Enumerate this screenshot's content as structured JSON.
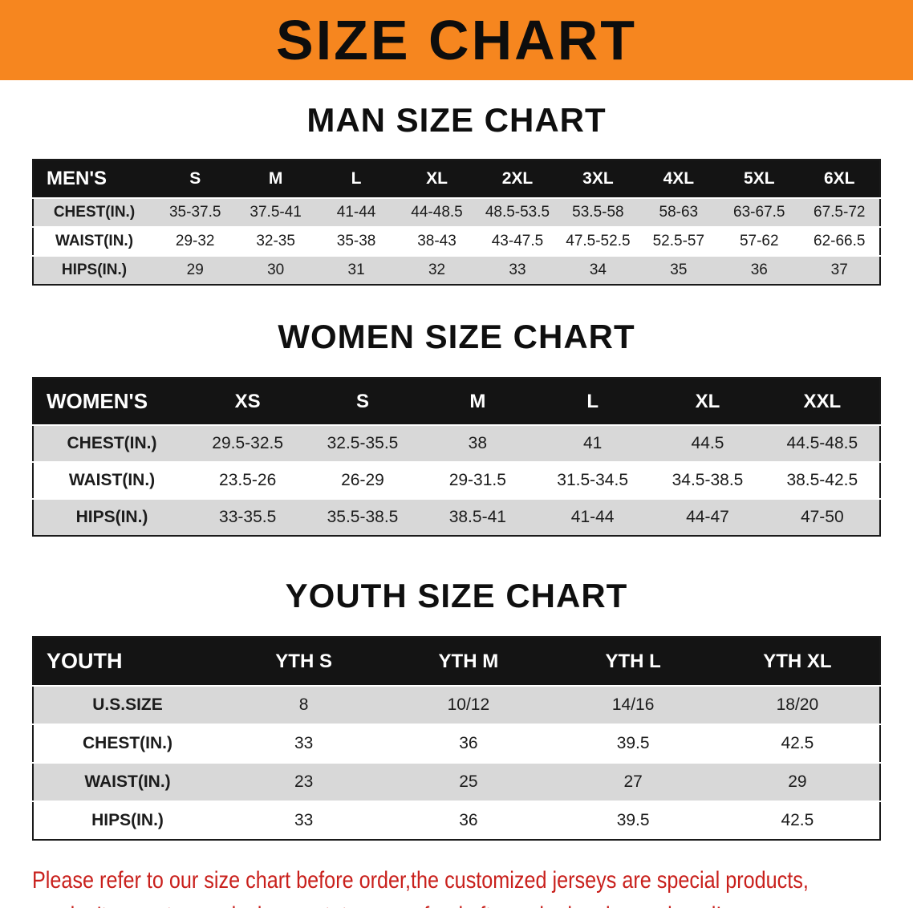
{
  "banner": {
    "title": "SIZE CHART"
  },
  "colors": {
    "banner_bg": "#f6861f",
    "table_header_bg": "#141414",
    "row_stripe": "#d8d8d8",
    "disclaimer_red": "#c9201c"
  },
  "chart_data": [
    {
      "type": "table",
      "title": "MAN SIZE CHART",
      "header": [
        "MEN'S",
        "S",
        "M",
        "L",
        "XL",
        "2XL",
        "3XL",
        "4XL",
        "5XL",
        "6XL"
      ],
      "rows": [
        [
          "CHEST(IN.)",
          "35-37.5",
          "37.5-41",
          "41-44",
          "44-48.5",
          "48.5-53.5",
          "53.5-58",
          "58-63",
          "63-67.5",
          "67.5-72"
        ],
        [
          "WAIST(IN.)",
          "29-32",
          "32-35",
          "35-38",
          "38-43",
          "43-47.5",
          "47.5-52.5",
          "52.5-57",
          "57-62",
          "62-66.5"
        ],
        [
          "HIPS(IN.)",
          "29",
          "30",
          "31",
          "32",
          "33",
          "34",
          "35",
          "36",
          "37"
        ]
      ]
    },
    {
      "type": "table",
      "title": "WOMEN SIZE CHART",
      "header": [
        "WOMEN'S",
        "XS",
        "S",
        "M",
        "L",
        "XL",
        "XXL"
      ],
      "rows": [
        [
          "CHEST(IN.)",
          "29.5-32.5",
          "32.5-35.5",
          "38",
          "41",
          "44.5",
          "44.5-48.5"
        ],
        [
          "WAIST(IN.)",
          "23.5-26",
          "26-29",
          "29-31.5",
          "31.5-34.5",
          "34.5-38.5",
          "38.5-42.5"
        ],
        [
          "HIPS(IN.)",
          "33-35.5",
          "35.5-38.5",
          "38.5-41",
          "41-44",
          "44-47",
          "47-50"
        ]
      ]
    },
    {
      "type": "table",
      "title": "YOUTH SIZE CHART",
      "header": [
        "YOUTH",
        "YTH S",
        "YTH M",
        "YTH L",
        "YTH XL"
      ],
      "rows": [
        [
          "U.S.SIZE",
          "8",
          "10/12",
          "14/16",
          "18/20"
        ],
        [
          "CHEST(IN.)",
          "33",
          "36",
          "39.5",
          "42.5"
        ],
        [
          "WAIST(IN.)",
          "23",
          "25",
          "27",
          "29"
        ],
        [
          "HIPS(IN.)",
          "33",
          "36",
          "39.5",
          "42.5"
        ]
      ]
    }
  ],
  "footer": {
    "line1": "Please refer to our size chart before order,the customized jerseys are special products,",
    "line2": "we don't accept cancel, change, teturn or refund after order has been placed!"
  }
}
